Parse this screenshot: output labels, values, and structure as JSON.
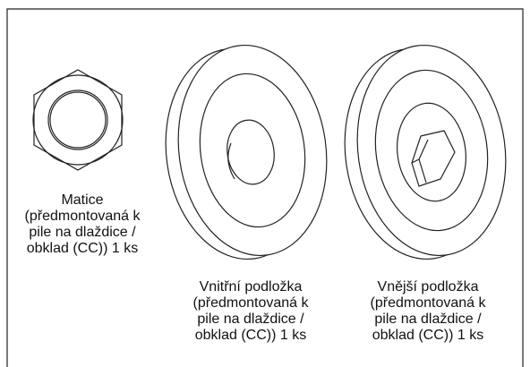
{
  "parts": [
    {
      "name": "Matice",
      "lines": [
        "(předmontovaná k",
        "pile na dlaždice /",
        "obklad (CC)) 1 ks"
      ]
    },
    {
      "name": "Vnitřní podložka",
      "lines": [
        "(předmontovaná k",
        "pile na dlaždice /",
        "obklad (CC)) 1 ks"
      ]
    },
    {
      "name": "Vnější podložka",
      "lines": [
        "(předmontovaná k",
        "pile na dlaždice /",
        "obklad (CC)) 1 ks"
      ]
    }
  ]
}
